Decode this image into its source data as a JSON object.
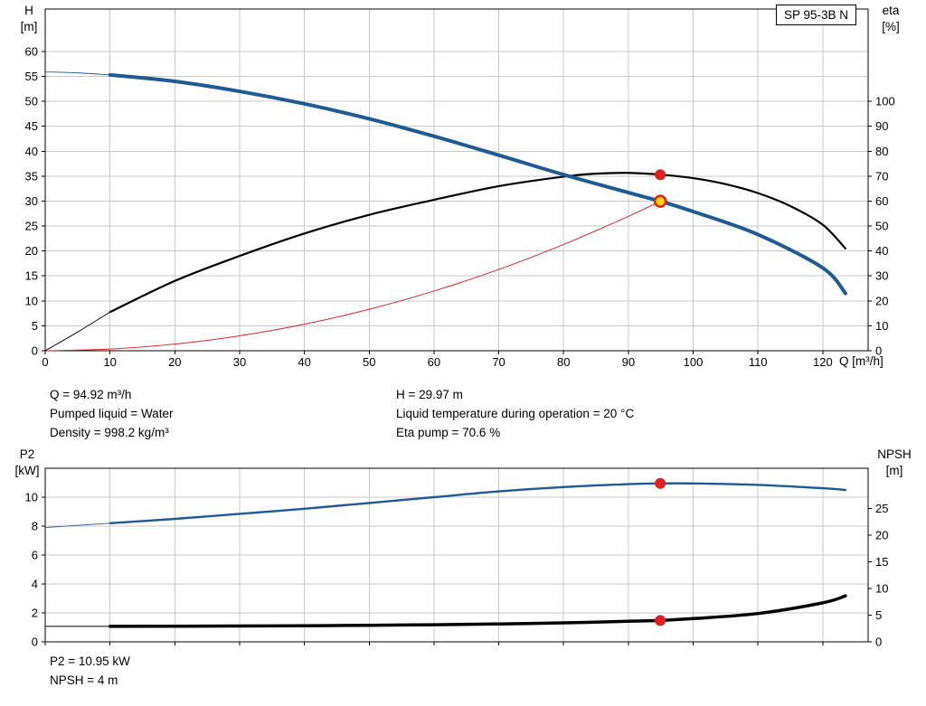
{
  "pump": {
    "model": "SP 95-3B N"
  },
  "operating_point_text": {
    "left": [
      "Q = 94.92 m³/h",
      "Pumped liquid = Water",
      "Density = 998.2 kg/m³"
    ],
    "right": [
      "H = 29.97 m",
      "Liquid temperature during operation = 20 °C",
      "Eta pump = 70.6 %"
    ]
  },
  "power_text": [
    "P2 = 10.95 kW",
    "NPSH = 4 m"
  ],
  "colors": {
    "curve_blue": "#1e5a96",
    "curve_black": "#000000",
    "curve_red": "#e02424",
    "duty_fill": "#ffd200",
    "duty_ring": "#e02020",
    "marker_red": "#e02020",
    "grid": "#c8c8c8",
    "frame": "#000000"
  },
  "chart_data": [
    {
      "type": "line",
      "title": "SP 95-3B N",
      "xlabel": "Q [m³/h]",
      "ylabel_left_lines": [
        "H",
        "[m]"
      ],
      "ylabel_right_lines": [
        "eta",
        "[%]"
      ],
      "xlim": [
        0,
        127
      ],
      "ylim_left": [
        0,
        68.5
      ],
      "ylim_right": [
        0,
        137
      ],
      "x_ticks": [
        0,
        10,
        20,
        30,
        40,
        50,
        60,
        70,
        80,
        90,
        100,
        110,
        120
      ],
      "y_ticks_left": [
        0,
        5,
        10,
        15,
        20,
        25,
        30,
        35,
        40,
        45,
        50,
        55,
        60
      ],
      "y_ticks_right": [
        0,
        10,
        20,
        30,
        40,
        50,
        60,
        70,
        80,
        90,
        100
      ],
      "grid": true,
      "legend": false,
      "series": [
        {
          "name": "system-curve",
          "axis": "left",
          "color": "#e02424",
          "width": 1,
          "x": [
            0,
            10,
            20,
            30,
            40,
            50,
            60,
            70,
            80,
            90,
            94.92
          ],
          "y": [
            0,
            0.33,
            1.33,
            3.0,
            5.32,
            8.32,
            11.97,
            16.3,
            21.3,
            26.95,
            29.97
          ]
        },
        {
          "name": "eta-curve",
          "axis": "right",
          "color": "#000000",
          "width": 2.2,
          "thin_until": 9,
          "x": [
            0,
            5,
            10,
            20,
            30,
            40,
            50,
            60,
            70,
            80,
            85,
            90,
            94.92,
            100,
            105,
            110,
            115,
            120,
            123.5
          ],
          "y": [
            0,
            7.5,
            15.5,
            28,
            38,
            47,
            54.5,
            60.5,
            66,
            69.8,
            71,
            71.3,
            70.6,
            69.2,
            66.8,
            63.2,
            58,
            50.5,
            41
          ]
        },
        {
          "name": "qh-curve",
          "axis": "left",
          "color": "#1e5a96",
          "width": 4,
          "thin_until": 9,
          "x": [
            0,
            5,
            10,
            20,
            30,
            40,
            50,
            60,
            70,
            80,
            90,
            94.92,
            100,
            110,
            120,
            123.5
          ],
          "y": [
            55.9,
            55.7,
            55.3,
            54,
            52,
            49.5,
            46.5,
            43,
            39.2,
            35.3,
            31.7,
            29.97,
            27.9,
            23.3,
            16.6,
            11.5
          ]
        }
      ],
      "markers": [
        {
          "name": "duty-point-eta",
          "x": 94.92,
          "value": 70.6,
          "axis": "right",
          "fill": "#e02020"
        },
        {
          "name": "duty-point-qh",
          "x": 94.92,
          "value": 29.97,
          "axis": "left",
          "fill": "#ffd200",
          "stroke": "#e02020"
        }
      ]
    },
    {
      "type": "line",
      "title": "",
      "xlabel": "",
      "ylabel_left_lines": [
        "P2",
        "[kW]"
      ],
      "ylabel_right_lines": [
        "NPSH",
        "[m]"
      ],
      "xlim": [
        0,
        127
      ],
      "ylim_left": [
        0,
        12
      ],
      "ylim_right": [
        0,
        32.5
      ],
      "x_ticks": [
        0,
        10,
        20,
        30,
        40,
        50,
        60,
        70,
        80,
        90,
        100,
        110,
        120
      ],
      "y_ticks_left": [
        0,
        2,
        4,
        6,
        8,
        10
      ],
      "y_ticks_right": [
        0,
        5,
        10,
        15,
        20,
        25
      ],
      "grid": true,
      "legend": false,
      "series": [
        {
          "name": "npsh-curve",
          "axis": "right",
          "color": "#000000",
          "width": 3.5,
          "thin_until": 9,
          "x": [
            0,
            5,
            10,
            20,
            30,
            40,
            50,
            60,
            70,
            80,
            90,
            94.92,
            100,
            110,
            120,
            123.5
          ],
          "y": [
            2.9,
            2.9,
            2.9,
            2.92,
            2.96,
            3.0,
            3.1,
            3.2,
            3.35,
            3.55,
            3.85,
            4.0,
            4.35,
            5.3,
            7.3,
            8.6
          ]
        },
        {
          "name": "p2-curve",
          "axis": "left",
          "color": "#1e5a96",
          "width": 2.4,
          "thin_until": 9,
          "x": [
            0,
            5,
            10,
            20,
            30,
            40,
            50,
            60,
            70,
            80,
            90,
            94.92,
            100,
            110,
            120,
            123.5
          ],
          "y": [
            7.9,
            8.05,
            8.2,
            8.5,
            8.85,
            9.2,
            9.6,
            10.0,
            10.4,
            10.7,
            10.9,
            10.95,
            10.95,
            10.85,
            10.62,
            10.5
          ]
        }
      ],
      "markers": [
        {
          "name": "duty-point-p2",
          "x": 94.92,
          "value": 10.95,
          "axis": "left",
          "fill": "#e02020"
        },
        {
          "name": "duty-point-npsh",
          "x": 94.92,
          "value": 4,
          "axis": "right",
          "fill": "#e02020"
        }
      ]
    }
  ]
}
